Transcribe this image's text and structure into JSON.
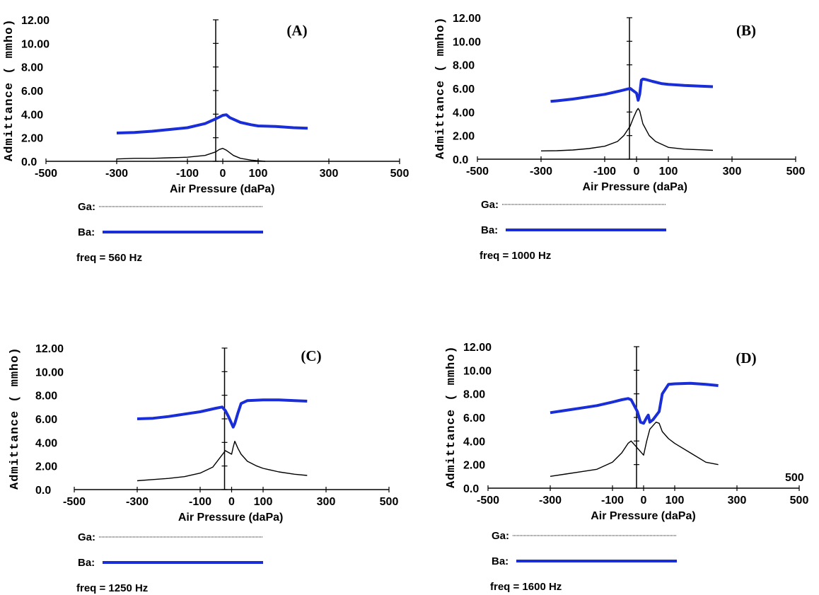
{
  "chart_data": [
    {
      "type": "line",
      "title": "(A)",
      "xlabel": "Air Pressure (daPa)",
      "ylabel": "Admittance ( mmho)",
      "xlim": [
        -500,
        500
      ],
      "ylim": [
        0,
        12
      ],
      "xtick_labels": [
        "-500",
        "-300",
        "-100",
        "0",
        "100",
        "300",
        "500"
      ],
      "ytick_labels": [
        "0.0",
        "2.00",
        "4.00",
        "6.00",
        "8.00",
        "10.00",
        "12.00"
      ],
      "legend": {
        "ga_label": "Ga:",
        "ba_label": "Ba:",
        "freq_label": "freq = 560 Hz",
        "placement": "below"
      },
      "series": [
        {
          "name": "Ga",
          "color": "#000000",
          "x": [
            -300,
            -250,
            -200,
            -150,
            -100,
            -50,
            -20,
            -10,
            0,
            10,
            30,
            50,
            80,
            100,
            120
          ],
          "y": [
            0.2,
            0.25,
            0.25,
            0.3,
            0.35,
            0.5,
            0.8,
            1.0,
            1.1,
            0.95,
            0.5,
            0.25,
            0.1,
            0.05,
            0.0
          ]
        },
        {
          "name": "Ba",
          "color": "#1a2ed8",
          "x": [
            -300,
            -250,
            -200,
            -150,
            -100,
            -50,
            -20,
            0,
            10,
            20,
            50,
            80,
            100,
            150,
            200,
            240
          ],
          "y": [
            2.4,
            2.45,
            2.55,
            2.7,
            2.85,
            3.2,
            3.6,
            3.9,
            3.95,
            3.7,
            3.3,
            3.1,
            3.0,
            2.95,
            2.85,
            2.8
          ]
        }
      ]
    },
    {
      "type": "line",
      "title": "(B)",
      "xlabel": "Air Pressure (daPa)",
      "ylabel": "Admittance ( mmho)",
      "xlim": [
        -500,
        500
      ],
      "ylim": [
        0,
        12
      ],
      "xtick_labels": [
        "-500",
        "-300",
        "-100",
        "0",
        "100",
        "300",
        "500"
      ],
      "ytick_labels": [
        "0.0",
        "2.00",
        "4.00",
        "6.00",
        "8.00",
        "10.00",
        "12.00"
      ],
      "legend": {
        "ga_label": "Ga:",
        "ba_label": "Ba:",
        "freq_label": "freq = 1000 Hz",
        "placement": "below"
      },
      "series": [
        {
          "name": "Ga",
          "color": "#000000",
          "x": [
            -300,
            -250,
            -200,
            -150,
            -100,
            -60,
            -40,
            -20,
            -10,
            0,
            5,
            10,
            20,
            40,
            60,
            100,
            150,
            200,
            240
          ],
          "y": [
            0.7,
            0.72,
            0.78,
            0.9,
            1.1,
            1.5,
            2.0,
            2.8,
            3.5,
            4.1,
            4.3,
            4.1,
            3.0,
            2.0,
            1.5,
            1.0,
            0.85,
            0.8,
            0.75
          ]
        },
        {
          "name": "Ba",
          "color": "#1a2ed8",
          "x": [
            -270,
            -250,
            -200,
            -150,
            -100,
            -50,
            -20,
            0,
            5,
            10,
            15,
            20,
            30,
            50,
            80,
            100,
            150,
            200,
            240
          ],
          "y": [
            4.9,
            4.95,
            5.1,
            5.3,
            5.5,
            5.8,
            6.0,
            5.6,
            5.0,
            5.5,
            6.7,
            6.8,
            6.75,
            6.6,
            6.4,
            6.35,
            6.25,
            6.2,
            6.15
          ]
        }
      ]
    },
    {
      "type": "line",
      "title": "(C)",
      "xlabel": "Air Pressure (daPa)",
      "ylabel": "Admittance ( mmho)",
      "xlim": [
        -500,
        500
      ],
      "ylim": [
        0,
        12
      ],
      "xtick_labels": [
        "-500",
        "-300",
        "-100",
        "0",
        "100",
        "300",
        "500"
      ],
      "ytick_labels": [
        "0.0",
        "2.00",
        "4.00",
        "6.00",
        "8.00",
        "10.00",
        "12.00"
      ],
      "legend": {
        "ga_label": "Ga:",
        "ba_label": "Ba:",
        "freq_label": "freq = 1250 Hz",
        "placement": "below"
      },
      "series": [
        {
          "name": "Ga",
          "color": "#000000",
          "x": [
            -300,
            -250,
            -200,
            -150,
            -100,
            -60,
            -40,
            -20,
            0,
            5,
            10,
            20,
            30,
            50,
            80,
            100,
            150,
            200,
            240
          ],
          "y": [
            0.75,
            0.85,
            0.95,
            1.1,
            1.4,
            1.9,
            2.6,
            3.3,
            3.0,
            3.6,
            4.1,
            3.5,
            3.0,
            2.4,
            2.0,
            1.8,
            1.5,
            1.3,
            1.2
          ]
        },
        {
          "name": "Ba",
          "color": "#1a2ed8",
          "x": [
            -300,
            -250,
            -200,
            -150,
            -100,
            -50,
            -30,
            -20,
            -10,
            0,
            5,
            10,
            20,
            30,
            50,
            100,
            150,
            200,
            240
          ],
          "y": [
            6.0,
            6.05,
            6.2,
            6.4,
            6.6,
            6.9,
            7.0,
            6.7,
            6.2,
            5.6,
            5.3,
            5.6,
            6.5,
            7.3,
            7.55,
            7.6,
            7.6,
            7.55,
            7.5
          ]
        }
      ]
    },
    {
      "type": "line",
      "title": "(D)",
      "xlabel": "Air Pressure (daPa)",
      "ylabel": "Admittance ( mmho)",
      "xlim": [
        -500,
        500
      ],
      "ylim": [
        0,
        12
      ],
      "xtick_labels": [
        "-500",
        "-300",
        "-100",
        "0",
        "100",
        "300",
        "500"
      ],
      "ytick_labels": [
        "0.0",
        "2.00",
        "4.00",
        "6.00",
        "8.00",
        "10.00",
        "12.00"
      ],
      "legend": {
        "ga_label": "Ga:",
        "ba_label": "Ba:",
        "freq_label": "freq = 1600 Hz",
        "placement": "below"
      },
      "series": [
        {
          "name": "Ga",
          "color": "#000000",
          "x": [
            -300,
            -250,
            -200,
            -150,
            -100,
            -70,
            -50,
            -40,
            -20,
            0,
            10,
            20,
            40,
            50,
            60,
            80,
            100,
            150,
            200,
            240
          ],
          "y": [
            1.0,
            1.2,
            1.4,
            1.6,
            2.2,
            3.0,
            3.8,
            4.0,
            3.4,
            2.8,
            4.0,
            5.0,
            5.6,
            5.5,
            4.8,
            4.2,
            3.8,
            3.0,
            2.2,
            2.0
          ]
        },
        {
          "name": "Ba",
          "color": "#1a2ed8",
          "x": [
            -300,
            -250,
            -200,
            -150,
            -100,
            -70,
            -50,
            -40,
            -20,
            -10,
            0,
            10,
            15,
            20,
            30,
            50,
            60,
            80,
            100,
            150,
            200,
            240
          ],
          "y": [
            6.4,
            6.6,
            6.8,
            7.0,
            7.3,
            7.5,
            7.6,
            7.5,
            6.5,
            5.6,
            5.5,
            6.0,
            6.2,
            5.6,
            5.8,
            6.5,
            8.0,
            8.8,
            8.85,
            8.9,
            8.8,
            8.7
          ]
        }
      ]
    }
  ],
  "stray_label": "500"
}
